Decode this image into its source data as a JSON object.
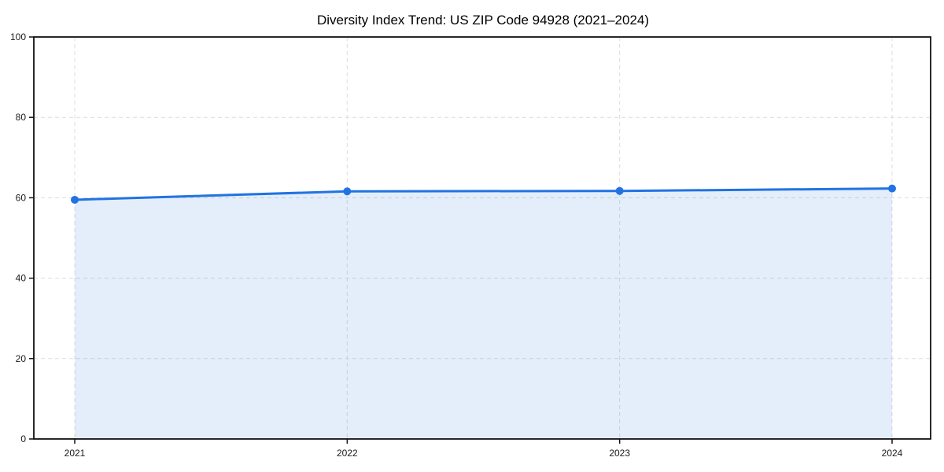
{
  "figure": {
    "title": "Diversity Index Trend: US ZIP Code 94928 (2021–2024)"
  },
  "chart_data": {
    "type": "area",
    "title": "Diversity Index Trend: US ZIP Code 94928 (2021–2024)",
    "categories": [
      "2021",
      "2022",
      "2023",
      "2024"
    ],
    "values": [
      59.5,
      61.6,
      61.7,
      62.3
    ],
    "xlabel": "",
    "ylabel": "",
    "ylim": [
      0,
      100
    ],
    "yticks": [
      0,
      20,
      40,
      60,
      80,
      100
    ],
    "xticks": [
      "2021",
      "2022",
      "2023",
      "2024"
    ],
    "legend_position": "none",
    "grid": {
      "show": true,
      "style": "dashed",
      "color": "#dcdcdc",
      "horizontal": true,
      "vertical": true
    },
    "colors": {
      "line": "#2173e2",
      "marker": "#2173e2",
      "area_fill": "rgba(33,114,224,0.12)",
      "spine": "#111111",
      "background": "#ffffff"
    },
    "marker_shape": "circle"
  }
}
